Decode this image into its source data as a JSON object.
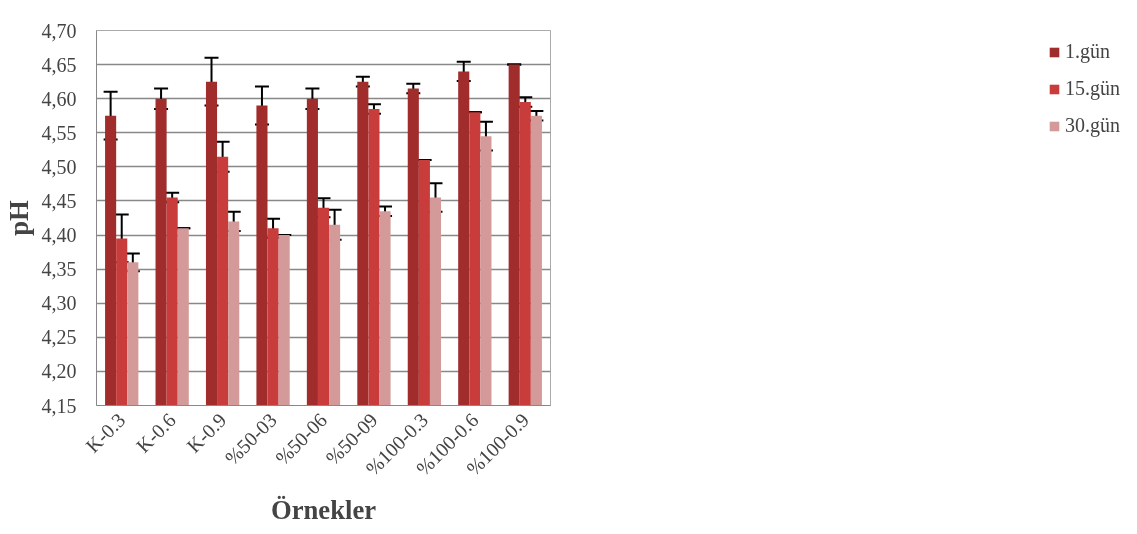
{
  "chart_data": {
    "type": "bar",
    "xlabel": "Örnekler",
    "ylabel": "pH",
    "categories": [
      "K-0.3",
      "K-0.6",
      "K-0.9",
      "%50-03",
      "%50-06",
      "%50-09",
      "%100-0.3",
      "%100-0.6",
      "%100-0.9"
    ],
    "series": [
      {
        "name": "1.gün",
        "color": "#a02c2c",
        "values": [
          4.575,
          4.6,
          4.625,
          4.59,
          4.6,
          4.625,
          4.615,
          4.64,
          4.65
        ],
        "errors": [
          0.035,
          0.015,
          0.035,
          0.028,
          0.015,
          0.007,
          0.007,
          0.014,
          0
        ]
      },
      {
        "name": "15.gün",
        "color": "#c83c3c",
        "values": [
          4.395,
          4.455,
          4.515,
          4.41,
          4.44,
          4.585,
          4.51,
          4.58,
          4.595
        ],
        "errors": [
          0.035,
          0.007,
          0.022,
          0.014,
          0.014,
          0.007,
          0,
          0,
          0.007
        ]
      },
      {
        "name": "30.gün",
        "color": "#d49a9a",
        "values": [
          4.36,
          4.41,
          4.42,
          4.4,
          4.415,
          4.435,
          4.455,
          4.545,
          4.575
        ],
        "errors": [
          0.013,
          0,
          0.014,
          0,
          0.022,
          0.007,
          0.021,
          0.021,
          0.007
        ]
      }
    ],
    "ylim": [
      4.15,
      4.7
    ],
    "yticks": [
      {
        "value": 4.15,
        "label": "4,15"
      },
      {
        "value": 4.2,
        "label": "4,20"
      },
      {
        "value": 4.25,
        "label": "4,25"
      },
      {
        "value": 4.3,
        "label": "4,30"
      },
      {
        "value": 4.35,
        "label": "4,35"
      },
      {
        "value": 4.4,
        "label": "4,40"
      },
      {
        "value": 4.45,
        "label": "4,45"
      },
      {
        "value": 4.5,
        "label": "4,50"
      },
      {
        "value": 4.55,
        "label": "4,55"
      },
      {
        "value": 4.6,
        "label": "4,60"
      },
      {
        "value": 4.65,
        "label": "4,65"
      },
      {
        "value": 4.7,
        "label": "4,70"
      }
    ],
    "grid": "y",
    "legend": "right"
  }
}
